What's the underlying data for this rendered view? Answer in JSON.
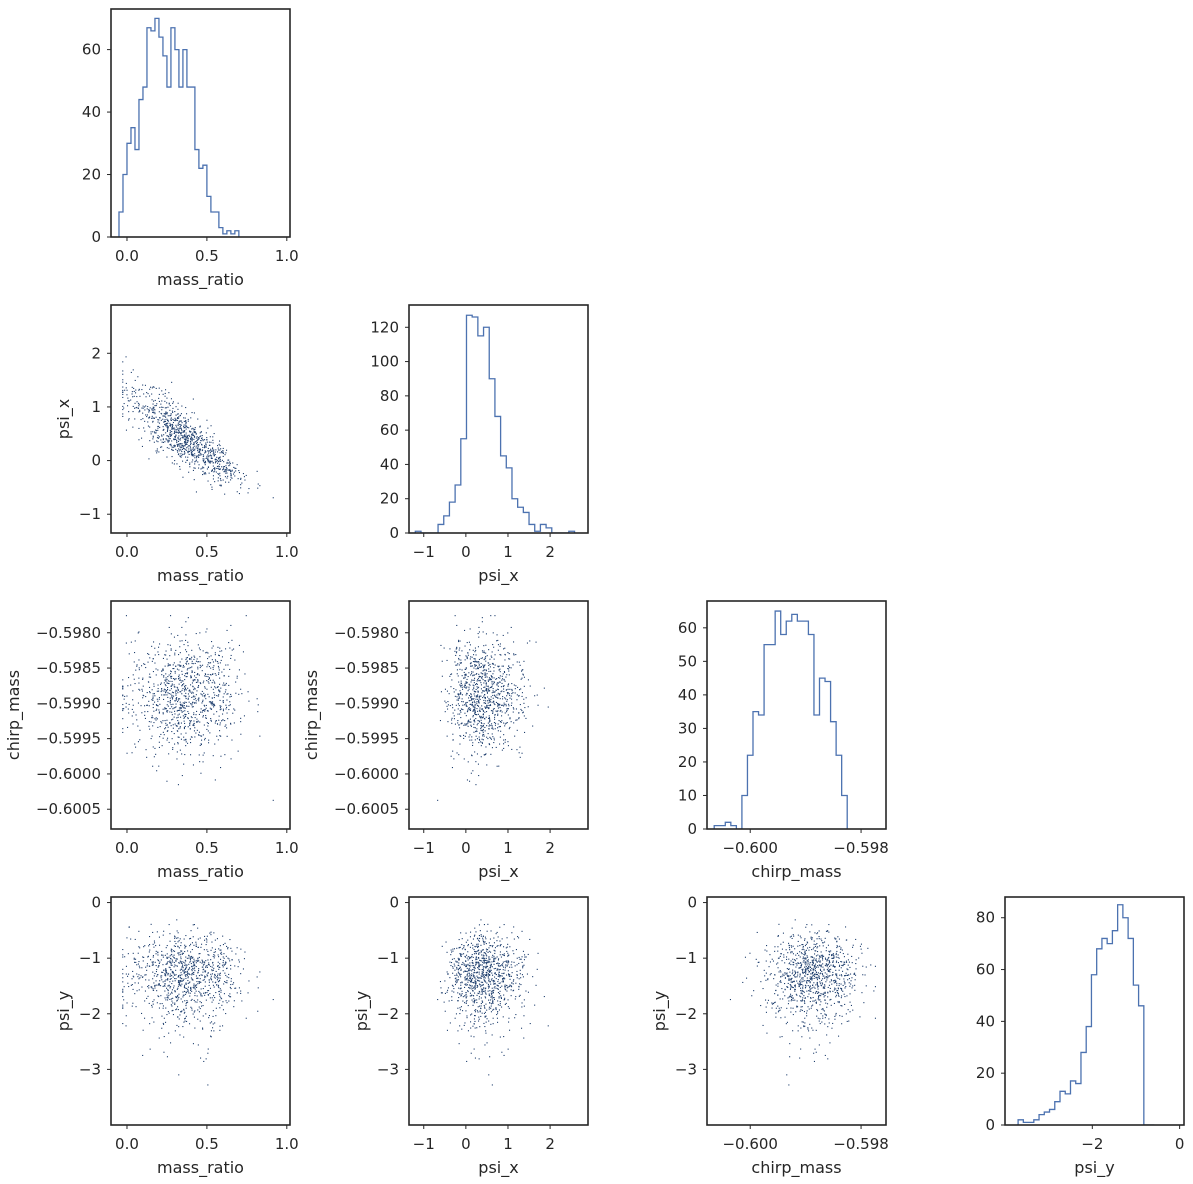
{
  "chart_data": {
    "type": "corner",
    "variables": [
      "mass_ratio",
      "psi_x",
      "chirp_mass",
      "psi_y"
    ],
    "colors": {
      "line": "#4c72b0",
      "points": "#1f3f6e",
      "frame": "#262626"
    },
    "axes": {
      "mass_ratio": {
        "lim": [
          -0.1,
          1.02
        ],
        "ticks": [
          0.0,
          0.5,
          1.0
        ],
        "tick_labels": [
          "0.0",
          "0.5",
          "1.0"
        ],
        "label": "mass_ratio"
      },
      "psi_x": {
        "lim": [
          -1.35,
          2.9
        ],
        "ticks": [
          -1,
          0,
          1,
          2
        ],
        "tick_labels": [
          "−1",
          "0",
          "1",
          "2"
        ],
        "label": "psi_x"
      },
      "chirp_mass": {
        "lim": [
          -0.60078,
          -0.59755
        ],
        "ticks": [
          -0.598,
          -0.5985,
          -0.599,
          -0.5995,
          -0.6,
          -0.6005
        ],
        "tick_labels": [
          "−0.5980",
          "−0.5985",
          "−0.5990",
          "−0.5995",
          "−0.6000",
          "−0.6005"
        ],
        "x_ticks": [
          -0.6,
          -0.598
        ],
        "x_tick_labels": [
          "−0.600",
          "−0.598"
        ],
        "label": "chirp_mass"
      },
      "psi_y": {
        "lim": [
          -4.0,
          0.1
        ],
        "ticks": [
          0,
          -1,
          -2,
          -3
        ],
        "tick_labels": [
          "0",
          "−1",
          "−2",
          "−3"
        ],
        "x_ticks": [
          -2,
          0
        ],
        "x_tick_labels": [
          "−2",
          "0"
        ],
        "label": "psi_y"
      }
    },
    "histograms": [
      {
        "variable": "mass_ratio",
        "bin_start": -0.05,
        "bin_width": 0.025,
        "counts": [
          8,
          20,
          30,
          35,
          28,
          44,
          48,
          67,
          66,
          70,
          64,
          58,
          48,
          67,
          60,
          48,
          60,
          48,
          48,
          28,
          22,
          23,
          13,
          8,
          8,
          3,
          1,
          2,
          1,
          2
        ],
        "yticks": [
          0,
          20,
          40,
          60
        ],
        "ylim": [
          0,
          73
        ]
      },
      {
        "variable": "psi_x",
        "bin_start": -1.2,
        "bin_width": 0.135,
        "counts": [
          1,
          0,
          0,
          0,
          5,
          10,
          18,
          28,
          55,
          127,
          126,
          115,
          120,
          90,
          68,
          45,
          38,
          20,
          15,
          12,
          5,
          1,
          5,
          3,
          0,
          0,
          0,
          1
        ],
        "yticks": [
          0,
          20,
          40,
          60,
          80,
          100,
          120
        ],
        "ylim": [
          0,
          133
        ]
      },
      {
        "variable": "chirp_mass",
        "bin_start": -0.60065,
        "bin_width": 0.0001,
        "counts": [
          1,
          1,
          2,
          1,
          0,
          10,
          22,
          35,
          34,
          55,
          55,
          65,
          58,
          62,
          64,
          62,
          62,
          58,
          34,
          45,
          44,
          32,
          22,
          10
        ],
        "yticks": [
          0,
          10,
          20,
          30,
          40,
          50,
          60
        ],
        "ylim": [
          0,
          68
        ]
      },
      {
        "variable": "psi_y",
        "bin_start": -3.7,
        "bin_width": 0.12,
        "counts": [
          2,
          1,
          1,
          2,
          4,
          5,
          6,
          9,
          13,
          12,
          17,
          16,
          28,
          38,
          58,
          68,
          72,
          70,
          75,
          85,
          80,
          72,
          54,
          46,
          0,
          0
        ],
        "yticks": [
          0,
          20,
          40,
          60,
          80
        ],
        "ylim": [
          0,
          88
        ]
      }
    ],
    "scatter_pairs": [
      [
        "mass_ratio",
        "psi_x"
      ],
      [
        "mass_ratio",
        "chirp_mass"
      ],
      [
        "psi_x",
        "chirp_mass"
      ],
      [
        "mass_ratio",
        "psi_y"
      ],
      [
        "psi_x",
        "psi_y"
      ],
      [
        "chirp_mass",
        "psi_y"
      ]
    ],
    "samples": 1000
  }
}
